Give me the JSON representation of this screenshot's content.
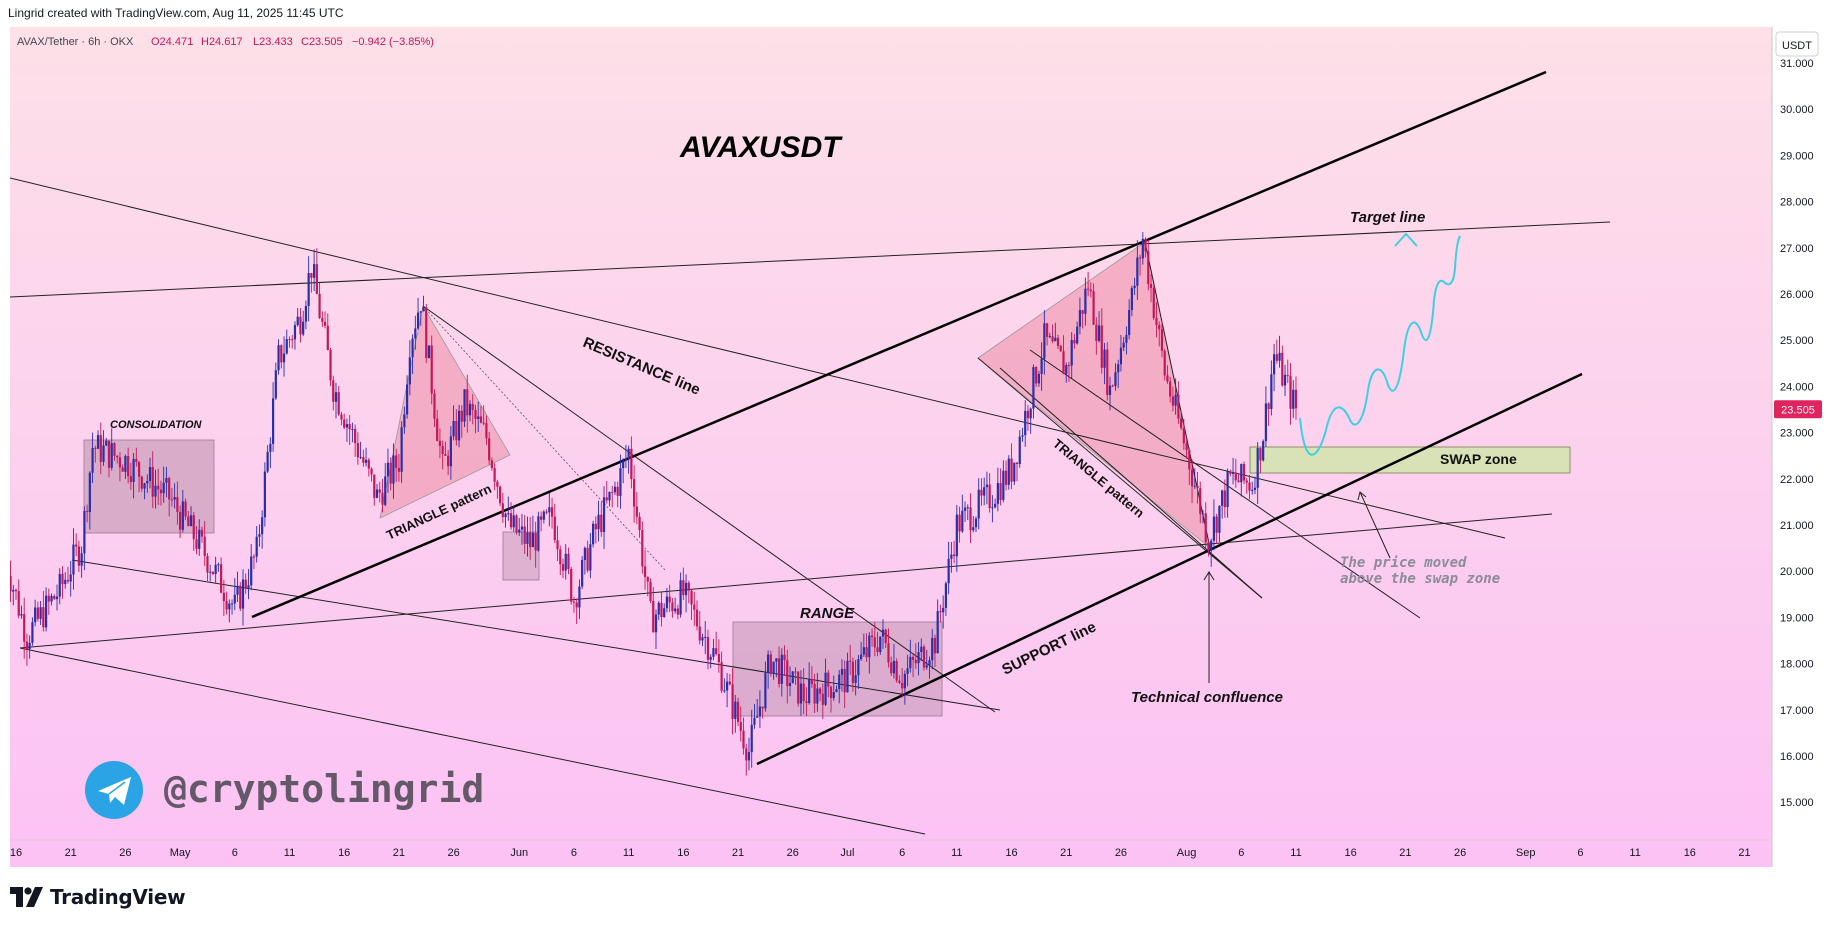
{
  "header": {
    "credit": "Lingrid created with TradingView.com, Aug 11, 2025 11:45 UTC",
    "symbol_line": "AVAX/Tether · 6h · OKX",
    "ohlc": {
      "open": "O24.471",
      "high": "H24.617",
      "low": "L23.433",
      "close": "C23.505",
      "change": "−0.942 (−3.85%)"
    }
  },
  "price_axis": {
    "currency_badge": "USDT",
    "last_price_label": "23.505",
    "tick_labels": [
      "31.000",
      "30.000",
      "29.000",
      "28.000",
      "27.000",
      "26.000",
      "25.000",
      "24.000",
      "23.000",
      "22.000",
      "21.000",
      "20.000",
      "19.000",
      "18.000",
      "17.000",
      "16.000",
      "15.000"
    ]
  },
  "time_axis": {
    "tick_labels": [
      "16",
      "21",
      "26",
      "May",
      "6",
      "11",
      "16",
      "21",
      "26",
      "Jun",
      "6",
      "11",
      "16",
      "21",
      "26",
      "Jul",
      "6",
      "11",
      "16",
      "21",
      "26",
      "Aug",
      "6",
      "11",
      "16",
      "21",
      "26",
      "Sep",
      "6",
      "11",
      "16",
      "21"
    ]
  },
  "annotations": {
    "title": "AVAXUSDT",
    "consolidation": "CONSOLIDATION",
    "triangle_1": "TRIANGLE pattern",
    "resistance": "RESISTANCE line",
    "range": "RANGE",
    "triangle_2": "TRIANGLE pattern",
    "support": "SUPPORT line",
    "technical": "Technical confluence",
    "target": "Target line",
    "swap": "SWAP zone",
    "price_moved_1": "The price moved",
    "price_moved_2": "above the swap zone"
  },
  "watermark": {
    "handle": "@cryptolingrid",
    "icon": "telegram-icon"
  },
  "footer": {
    "brand": "TradingView",
    "icon": "tradingview-logo-icon"
  },
  "colors": {
    "bg_top": "#fde0e8",
    "bg_bottom": "#fcc2f4",
    "up_candle": "#2a2ea8",
    "down_candle": "#c2185b",
    "last_price_badge": "#e0245e",
    "projection": "#3fd0e0",
    "swap_zone": "#d8e2b6",
    "triangle_fill": "#f2a0b8"
  },
  "chart_data": {
    "type": "candlestick",
    "symbol": "AVAX/Tether",
    "interval": "6h",
    "exchange": "OKX",
    "ylim": [
      14.4,
      32.0
    ],
    "price_path": [
      [
        "Apr 15",
        20.3
      ],
      [
        "Apr 17",
        18.6
      ],
      [
        "Apr 20",
        19.6
      ],
      [
        "Apr 22",
        20.6
      ],
      [
        "Apr 23",
        22.7
      ],
      [
        "Apr 26",
        22.4
      ],
      [
        "Apr 30",
        21.6
      ],
      [
        "May 3",
        20.5
      ],
      [
        "May 6",
        19.2
      ],
      [
        "May 8",
        20.4
      ],
      [
        "May 10",
        24.6
      ],
      [
        "May 12",
        25.5
      ],
      [
        "May 13",
        26.6
      ],
      [
        "May 15",
        24.0
      ],
      [
        "May 19",
        21.6
      ],
      [
        "May 21",
        22.4
      ],
      [
        "May 22",
        25.0
      ],
      [
        "May 23",
        25.9
      ],
      [
        "May 25",
        22.2
      ],
      [
        "May 27",
        23.6
      ],
      [
        "May 29",
        22.9
      ],
      [
        "May 31",
        21.0
      ],
      [
        "Jun 2",
        20.6
      ],
      [
        "Jun 4",
        21.2
      ],
      [
        "Jun 6",
        19.4
      ],
      [
        "Jun 8",
        20.9
      ],
      [
        "Jun 10",
        21.9
      ],
      [
        "Jun 11",
        22.6
      ],
      [
        "Jun 13",
        19.0
      ],
      [
        "Jun 16",
        19.5
      ],
      [
        "Jun 19",
        18.1
      ],
      [
        "Jun 22",
        16.1
      ],
      [
        "Jun 24",
        18.1
      ],
      [
        "Jun 27",
        17.3
      ],
      [
        "Jul 1",
        17.7
      ],
      [
        "Jul 4",
        18.6
      ],
      [
        "Jul 6",
        17.7
      ],
      [
        "Jul 9",
        18.5
      ],
      [
        "Jul 11",
        21.0
      ],
      [
        "Jul 14",
        21.6
      ],
      [
        "Jul 16",
        22.2
      ],
      [
        "Jul 19",
        25.0
      ],
      [
        "Jul 21",
        24.4
      ],
      [
        "Jul 23",
        26.2
      ],
      [
        "Jul 25",
        23.9
      ],
      [
        "Jul 27",
        25.9
      ],
      [
        "Jul 28",
        27.2
      ],
      [
        "Jul 30",
        24.3
      ],
      [
        "Aug 1",
        22.6
      ],
      [
        "Aug 3",
        20.7
      ],
      [
        "Aug 5",
        22.0
      ],
      [
        "Aug 7",
        21.9
      ],
      [
        "Aug 8",
        23.0
      ],
      [
        "Aug 9",
        24.7
      ],
      [
        "Aug 11",
        23.5
      ]
    ],
    "last": {
      "open": 24.471,
      "high": 24.617,
      "low": 23.433,
      "close": 23.505,
      "change": -0.942,
      "change_pct": -3.85
    },
    "swap_zone": [
      22.3,
      22.9
    ],
    "projection_target": 27.5
  }
}
